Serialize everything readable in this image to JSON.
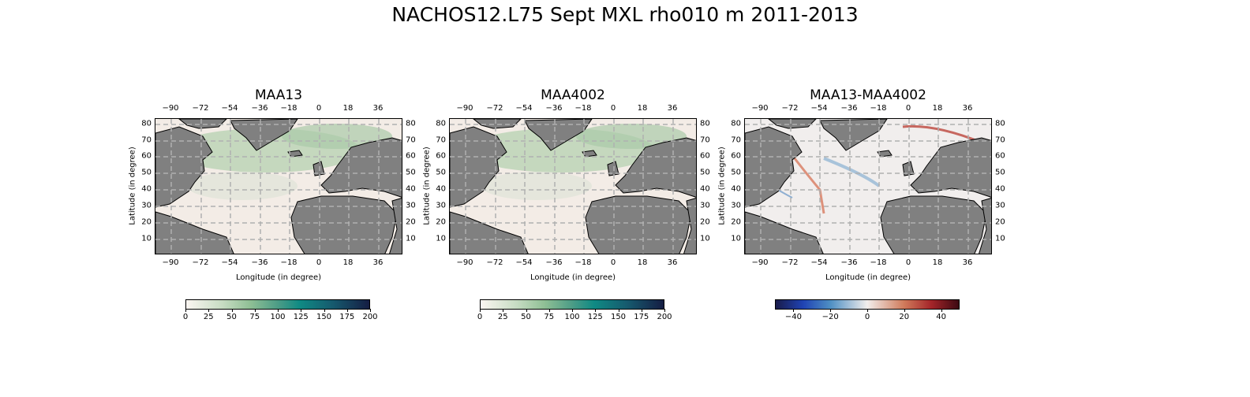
{
  "figure": {
    "title": "NACHOS12.L75 Sept MXL rho010 m 2011-2013"
  },
  "axes": {
    "xlabel": "Longitude (in degree)",
    "ylabel": "Latitude (in degree)",
    "lon_ticks": [
      "−90",
      "−72",
      "−54",
      "−36",
      "−18",
      "0",
      "18",
      "36"
    ],
    "lat_ticks": [
      "80",
      "70",
      "60",
      "50",
      "40",
      "30",
      "20",
      "10"
    ]
  },
  "panels": [
    {
      "title": "MAA13",
      "colorbar": [
        "0",
        "25",
        "50",
        "75",
        "100",
        "125",
        "150",
        "175",
        "200"
      ],
      "cmap": "tempo"
    },
    {
      "title": "MAA4002",
      "colorbar": [
        "0",
        "25",
        "50",
        "75",
        "100",
        "125",
        "150",
        "175",
        "200"
      ],
      "cmap": "tempo"
    },
    {
      "title": "MAA13-MAA4002",
      "colorbar": [
        "−40",
        "−20",
        "0",
        "20",
        "40"
      ],
      "cmap": "balance"
    }
  ],
  "colors": {
    "land": "#808080",
    "ocean_low": "#f3ece6",
    "grid": "#b0b0b0"
  }
}
